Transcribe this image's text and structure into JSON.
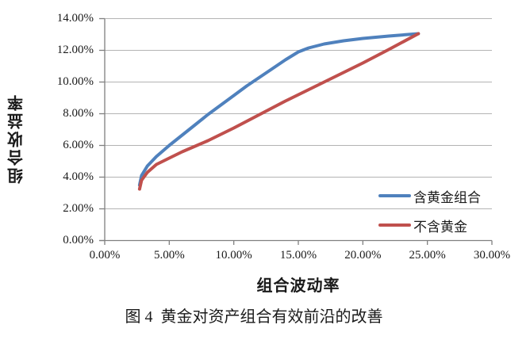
{
  "figure": {
    "background_color": "#ffffff",
    "axis_color": "#808080",
    "grid_color": "#b3b3b3",
    "text_color": "#1a1a1a"
  },
  "chart_data": {
    "type": "line",
    "title": "",
    "xlabel": "组合波动率",
    "ylabel": "组合收益率",
    "xlim": [
      0,
      30
    ],
    "ylim": [
      0,
      14
    ],
    "x_tick_labels": [
      "0.00%",
      "5.00%",
      "10.00%",
      "15.00%",
      "20.00%",
      "25.00%",
      "30.00%"
    ],
    "x_tick_values": [
      0,
      5,
      10,
      15,
      20,
      25,
      30
    ],
    "y_tick_labels": [
      "0.00%",
      "2.00%",
      "4.00%",
      "6.00%",
      "8.00%",
      "10.00%",
      "12.00%",
      "14.00%"
    ],
    "y_tick_values": [
      0,
      2,
      4,
      6,
      8,
      10,
      12,
      14
    ],
    "grid": "horizontal-only",
    "legend_position": "inside-right",
    "units": "percent",
    "series": [
      {
        "name": "含黄金组合",
        "color": "#4F81BD",
        "points": [
          [
            2.7,
            3.5
          ],
          [
            2.85,
            4.1
          ],
          [
            3.3,
            4.7
          ],
          [
            4.0,
            5.3
          ],
          [
            5.0,
            6.0
          ],
          [
            6.0,
            6.65
          ],
          [
            7.0,
            7.3
          ],
          [
            8.0,
            7.95
          ],
          [
            9.0,
            8.55
          ],
          [
            10.0,
            9.15
          ],
          [
            11.0,
            9.75
          ],
          [
            12.0,
            10.3
          ],
          [
            13.0,
            10.85
          ],
          [
            14.0,
            11.4
          ],
          [
            15.0,
            11.9
          ],
          [
            15.8,
            12.15
          ],
          [
            17.0,
            12.4
          ],
          [
            18.5,
            12.6
          ],
          [
            20.0,
            12.75
          ],
          [
            22.0,
            12.9
          ],
          [
            24.3,
            13.05
          ]
        ]
      },
      {
        "name": "不含黄金",
        "color": "#C0504D",
        "points": [
          [
            2.7,
            3.25
          ],
          [
            2.85,
            3.8
          ],
          [
            3.3,
            4.3
          ],
          [
            4.0,
            4.8
          ],
          [
            5.0,
            5.2
          ],
          [
            6.0,
            5.6
          ],
          [
            7.0,
            5.95
          ],
          [
            8.0,
            6.3
          ],
          [
            10.0,
            7.1
          ],
          [
            12.0,
            7.95
          ],
          [
            14.0,
            8.8
          ],
          [
            16.0,
            9.6
          ],
          [
            18.0,
            10.4
          ],
          [
            20.0,
            11.2
          ],
          [
            22.0,
            12.05
          ],
          [
            24.3,
            13.05
          ]
        ]
      }
    ],
    "caption": "图 4  黄金对资产组合有效前沿的改善"
  }
}
